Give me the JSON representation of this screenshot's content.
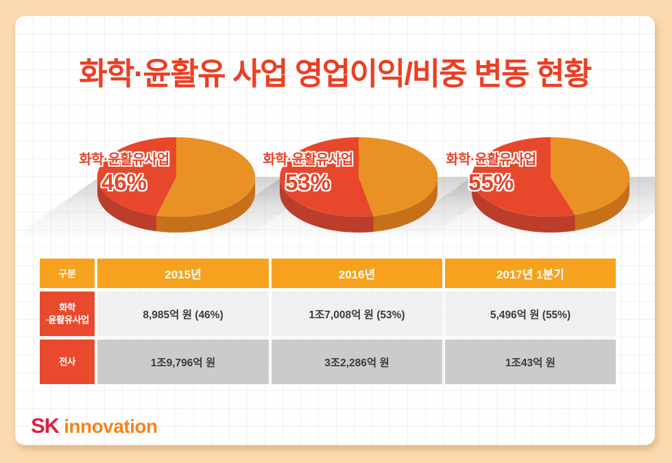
{
  "title": "화학·윤활유 사업 영업이익/비중 변동 현황",
  "chart_data": [
    {
      "type": "pie",
      "label_text": "화학·윤활유사업",
      "percent_text": "46%",
      "slices": [
        {
          "label": "화학·윤활유사업",
          "value": 46,
          "color": "#E7472B",
          "side_color": "#BC3D2A"
        },
        {
          "value": 54,
          "color": "#EA9126",
          "side_color": "#C6701A"
        }
      ]
    },
    {
      "type": "pie",
      "label_text": "화학·윤활유사업",
      "percent_text": "53%",
      "slices": [
        {
          "label": "화학·윤활유사업",
          "value": 53,
          "color": "#E7472B",
          "side_color": "#BC3D2A"
        },
        {
          "value": 47,
          "color": "#EA9126",
          "side_color": "#C6701A"
        }
      ]
    },
    {
      "type": "pie",
      "label_text": "화학·윤활유사업",
      "percent_text": "55%",
      "slices": [
        {
          "label": "화학·윤활유사업",
          "value": 55,
          "color": "#E7472B",
          "side_color": "#BC3D2A"
        },
        {
          "value": 45,
          "color": "#EA9126",
          "side_color": "#C6701A"
        }
      ]
    }
  ],
  "table": {
    "headers": [
      "구분",
      "2015년",
      "2016년",
      "2017년 1분기"
    ],
    "rows": [
      {
        "label": "화학\n·윤활유사업",
        "values": [
          "8,985억 원 (46%)",
          "1조7,008억 원 (53%)",
          "5,496억 원 (55%)"
        ]
      },
      {
        "label": "전사",
        "values": [
          "1조9,796억 원",
          "3조2,286억 원",
          "1조43억 원"
        ]
      }
    ]
  },
  "logo": {
    "sk": "SK",
    "innovation": "innovation"
  },
  "colors": {
    "background": "#FBDAAF",
    "title": "#EC3E23",
    "table_header": "#F6A21E",
    "row_label": "#E94A2D",
    "pie_red": "#E7472B",
    "pie_orange": "#EA9126",
    "logo_red": "#DD1F3D",
    "logo_orange": "#F58220"
  }
}
